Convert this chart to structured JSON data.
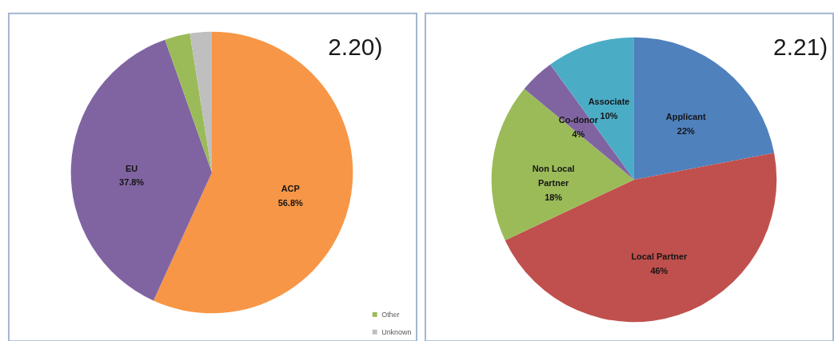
{
  "chart_data": [
    {
      "type": "pie",
      "title": "2.20)",
      "categories": [
        "ACP",
        "EU",
        "Other",
        "Unknown"
      ],
      "values": [
        56.8,
        37.8,
        2.9,
        2.5
      ],
      "colors": [
        "#f79646",
        "#8064a2",
        "#9bbb59",
        "#bfbfbf"
      ],
      "value_labels": [
        "56.8%",
        "37.8%",
        null,
        null
      ],
      "legend": "bottom right"
    },
    {
      "type": "pie",
      "title": "2.21)",
      "categories": [
        "Applicant",
        "Local Partner",
        "Non Local Partner",
        "Co-donor",
        "Associate"
      ],
      "values": [
        22,
        46,
        18,
        4,
        10
      ],
      "colors": [
        "#4f81bd",
        "#c0504d",
        "#9bbb59",
        "#8064a2",
        "#4bacc6"
      ],
      "value_labels": [
        "22%",
        "46%",
        "18%",
        "4%",
        "10%"
      ],
      "legend": false
    }
  ]
}
